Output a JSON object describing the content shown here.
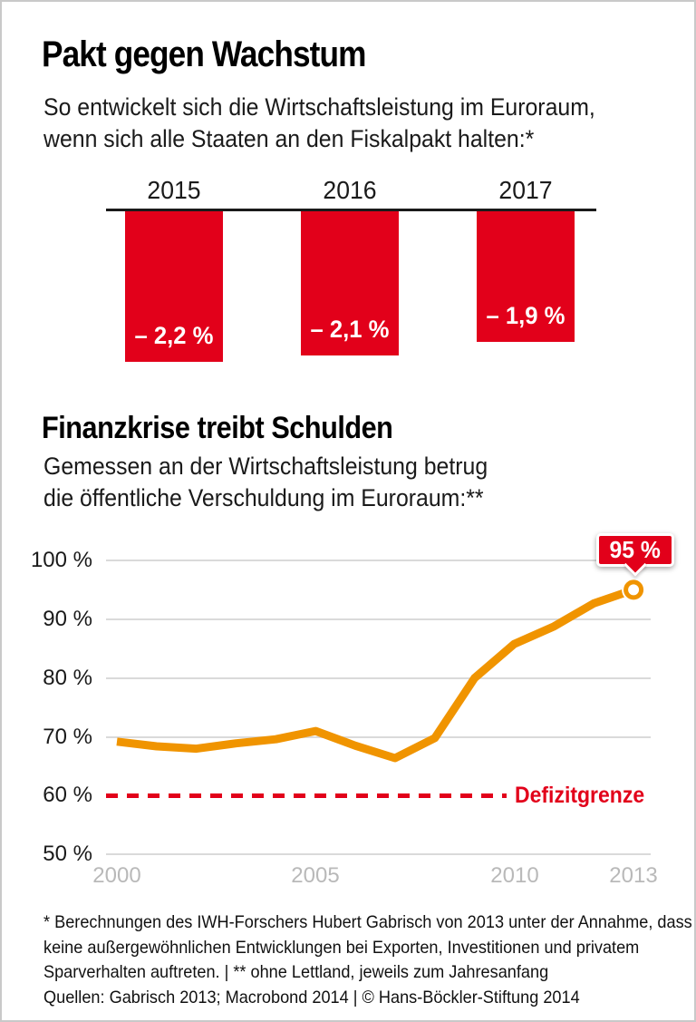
{
  "header": {
    "title": "Pakt gegen Wachstum",
    "subtitle": [
      "So entwickelt sich die Wirtschaftsleistung im Euroraum,",
      "wenn sich alle Staaten an den Fiskalpakt halten:*"
    ]
  },
  "section2": {
    "title": "Finanzkrise treibt Schulden",
    "subtitle": [
      "Gemessen an der Wirtschaftsleistung betrug",
      "die öffentliche Verschuldung im Euroraum:**"
    ]
  },
  "colors": {
    "red": "#e2001a",
    "orange": "#f09400",
    "grid_gray": "#dadada",
    "tick_gray": "#b9b9b9",
    "text_black": "#1a1a1a"
  },
  "chart_data": [
    {
      "type": "bar",
      "title": "Pakt gegen Wachstum",
      "categories": [
        "2015",
        "2016",
        "2017"
      ],
      "values": [
        -2.2,
        -2.1,
        -1.9
      ],
      "value_labels": [
        "– 2,2 %",
        "– 2,1 %",
        "– 1,9 %"
      ],
      "bar_color": "#e2001a",
      "baseline": 0,
      "orientation": "bars hang downward from zero line"
    },
    {
      "type": "line",
      "title": "Finanzkrise treibt Schulden",
      "x": [
        2000,
        2001,
        2002,
        2003,
        2004,
        2005,
        2006,
        2007,
        2008,
        2009,
        2010,
        2011,
        2012,
        2013
      ],
      "values": [
        69.2,
        68.4,
        68.0,
        68.9,
        69.6,
        71.0,
        68.5,
        66.4,
        69.8,
        80.0,
        85.8,
        88.8,
        92.7,
        95.0
      ],
      "line_color": "#f09400",
      "ylim": [
        50,
        100
      ],
      "ytick_values": [
        100,
        90,
        80,
        70,
        60,
        50
      ],
      "ytick_labels": [
        "100 %",
        "90 %",
        "80 %",
        "70 %",
        "60 %",
        "50 %"
      ],
      "xtick_values": [
        2000,
        2005,
        2010,
        2013
      ],
      "xtick_labels": [
        "2000",
        "2005",
        "2010",
        "2013"
      ],
      "grid": true,
      "legend_position": "none",
      "annotation": {
        "label": "95 %",
        "x": 2013,
        "y": 95
      },
      "reference_line": {
        "label": "Defizitgrenze",
        "y": 60,
        "style": "dashed",
        "color": "#e2001a"
      }
    }
  ],
  "footnotes": [
    "* Berechnungen des IWH-Forschers Hubert Gabrisch von 2013 unter der Annahme, dass",
    "keine außergewöhnlichen Entwicklungen bei Exporten, Investitionen und privatem",
    "Sparverhalten auftreten. | ** ohne Lettland, jeweils zum Jahresanfang",
    "Quellen: Gabrisch 2013; Macrobond 2014 | © Hans-Böckler-Stiftung 2014"
  ]
}
